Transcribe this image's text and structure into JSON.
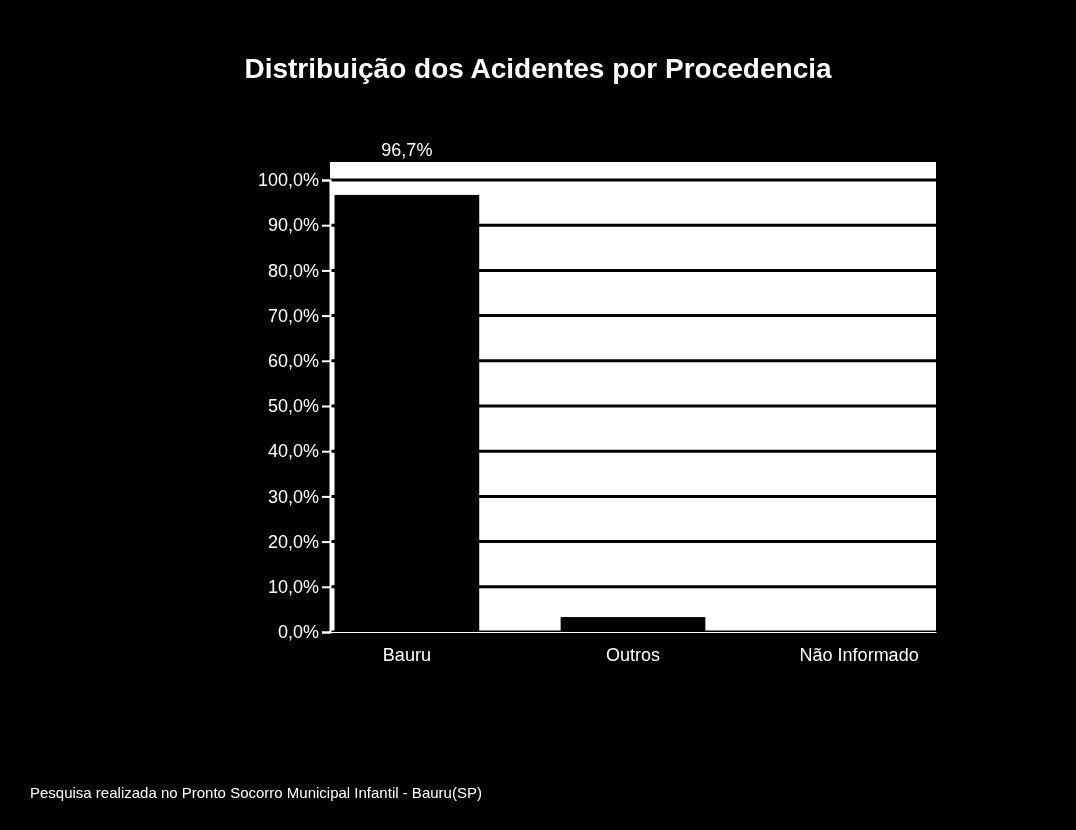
{
  "chart_data": {
    "type": "bar",
    "title": "Distribuição dos Acidentes por Procedencia",
    "categories": [
      "Bauru",
      "Outros",
      "Não Informado"
    ],
    "values": [
      96.7,
      3.3,
      0
    ],
    "value_labels": [
      "96,7%",
      null,
      null
    ],
    "color": "#000000",
    "ylim": [
      0,
      100
    ],
    "yticks": [
      {
        "value": 0,
        "label": "0,0%"
      },
      {
        "value": 10,
        "label": "10,0%"
      },
      {
        "value": 20,
        "label": "20,0%"
      },
      {
        "value": 30,
        "label": "30,0%"
      },
      {
        "value": 40,
        "label": "40,0%"
      },
      {
        "value": 50,
        "label": "50,0%"
      },
      {
        "value": 60,
        "label": "60,0%"
      },
      {
        "value": 70,
        "label": "70,0%"
      },
      {
        "value": 80,
        "label": "80,0%"
      },
      {
        "value": 90,
        "label": "90,0%"
      },
      {
        "value": 100,
        "label": "100,0%"
      }
    ],
    "grid": "y",
    "annotations": [
      "Pesquisa realizada no Pronto Socorro Municipal Infantil - Bauru(SP)"
    ]
  }
}
